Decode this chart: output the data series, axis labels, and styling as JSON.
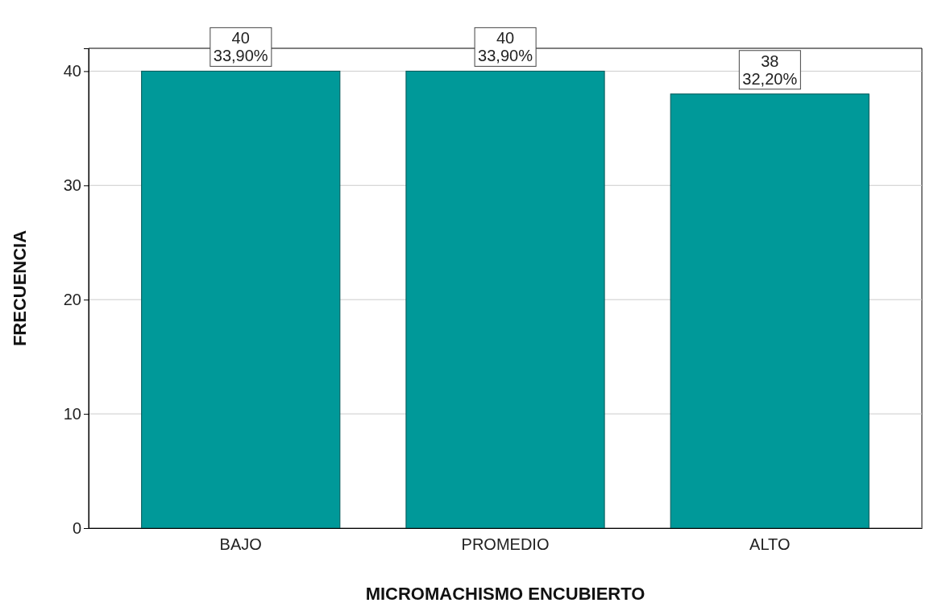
{
  "chart_data": {
    "type": "bar",
    "xlabel": "MICROMACHISMO ENCUBIERTO",
    "ylabel": "FRECUENCIA",
    "categories": [
      "BAJO",
      "PROMEDIO",
      "ALTO"
    ],
    "values": [
      40,
      40,
      38
    ],
    "value_labels": [
      "40\n33,90%",
      "40\n33,90%",
      "38\n32,20%"
    ],
    "color": "#009999",
    "ylim": [
      0,
      42
    ],
    "yticks": [
      0,
      10,
      20,
      30,
      40
    ],
    "grid": "y"
  }
}
